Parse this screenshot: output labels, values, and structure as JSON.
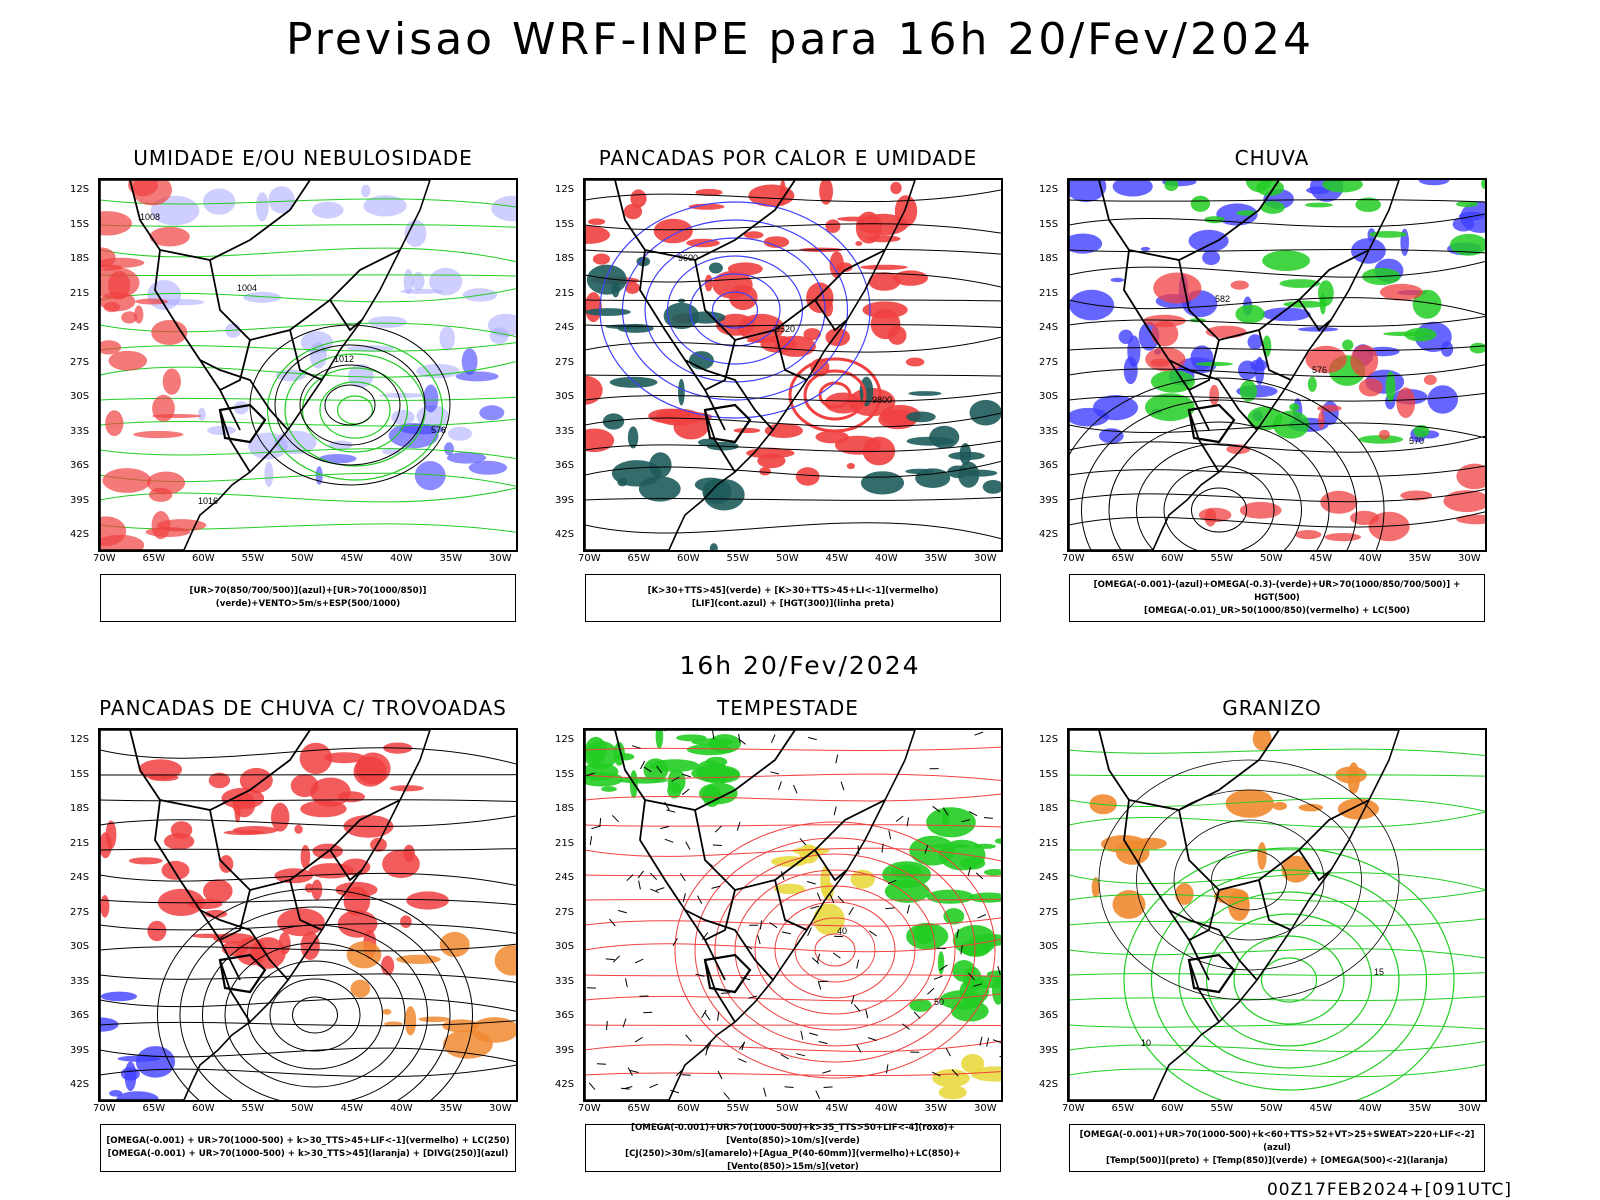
{
  "title": "Previsao WRF-INPE  para 16h 20/Fev/2024",
  "mid_title": "16h 20/Fev/2024",
  "footer": "00Z17FEB2024+[091UTC]",
  "axes": {
    "lat_labels": [
      "12S",
      "15S",
      "18S",
      "21S",
      "24S",
      "27S",
      "30S",
      "33S",
      "36S",
      "39S",
      "42S"
    ],
    "lon_labels": [
      "70W",
      "65W",
      "60W",
      "55W",
      "50W",
      "45W",
      "40W",
      "35W",
      "30W"
    ]
  },
  "colors": {
    "red": "#f04040",
    "green": "#22cc22",
    "blue": "#4040ff",
    "lightblue": "#a8a8ff",
    "teal": "#1e5b5b",
    "orange": "#f08a30",
    "yellow": "#e8d840"
  },
  "panels": [
    {
      "title": "UMIDADE E/OU NEBULOSIDADE",
      "legend": [
        "[UR>70(850/700/500)](azul)+[UR>70(1000/850)](verde)+VENTO>5m/s+ESP(500/1000)"
      ],
      "labels": [
        "1008",
        "1004",
        "1012",
        "576",
        "1016"
      ]
    },
    {
      "title": "PANCADAS POR CALOR E UMIDADE",
      "legend": [
        "[K>30+TTS>45](verde) + [K>30+TTS>45+LI<-1](vermelho)",
        "[LIF](cont.azul) + [HGT(300)](linha preta)"
      ],
      "labels": [
        "9600",
        "9520",
        "9800"
      ]
    },
    {
      "title": "CHUVA",
      "legend": [
        "[OMEGA(-0.001)-(azul)+OMEGA(-0.3)-(verde)+UR>70(1000/850/700/500)] + HGT(500)",
        "[OMEGA(-0.01)_UR>50(1000/850)(vermelho) + LC(500)"
      ],
      "labels": [
        "582",
        "576",
        "570"
      ]
    },
    {
      "title": "PANCADAS DE CHUVA C/ TROVOADAS",
      "legend": [
        "[OMEGA(-0.001) + UR>70(1000-500) + k>30_TTS>45+LIF<-1](vermelho) + LC(250)",
        "[OMEGA(-0.001) + UR>70(1000-500) + k>30_TTS>45](laranja) + [DIVG(250)](azul)"
      ],
      "labels": []
    },
    {
      "title": "TEMPESTADE",
      "legend": [
        "[OMEGA(-0.001)+UR>70(1000-500)+k>35_TTS>50+LIF<-4](roxo)+[Vento(850)>10m/s](verde)",
        "[CJ(250)>30m/s](amarelo)+[Agua_P(40-60mm)](vermelho)+LC(850)+[Vento(850)>15m/s](vetor)"
      ],
      "labels": [
        "40",
        "50"
      ]
    },
    {
      "title": "GRANIZO",
      "legend": [
        "[OMEGA(-0.001)+UR>70(1000-500)+k<60+TTS>52+VT>25+SWEAT>220+LIF<-2](azul)",
        "[Temp(500)](preto) + [Temp(850)](verde) + [OMEGA(500)<-2](laranja)"
      ],
      "labels": [
        "15",
        "10"
      ]
    }
  ]
}
